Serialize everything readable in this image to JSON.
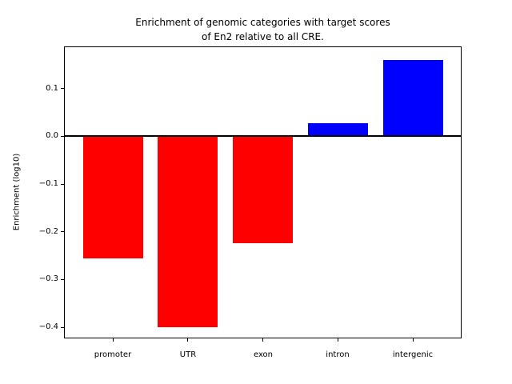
{
  "chart_data": {
    "type": "bar",
    "title": "Enrichment of genomic categories with target scores\nof En2 relative to all CRE.",
    "xlabel": "",
    "ylabel": "Enrichment (log10)",
    "categories": [
      "promoter",
      "UTR",
      "exon",
      "intron",
      "intergenic"
    ],
    "values": [
      -0.256,
      -0.4,
      -0.224,
      0.028,
      0.16
    ],
    "bar_colors": [
      "#ff0000",
      "#ff0000",
      "#ff0000",
      "#0000ff",
      "#0000ff"
    ],
    "negative_color": "#ff0000",
    "positive_color": "#0000ff",
    "yticks": [
      {
        "value": 0.1,
        "label": "0.1"
      },
      {
        "value": 0.0,
        "label": "0.0"
      },
      {
        "value": -0.1,
        "label": "−0.1"
      },
      {
        "value": -0.2,
        "label": "−0.2"
      },
      {
        "value": -0.3,
        "label": "−0.3"
      },
      {
        "value": -0.4,
        "label": "−0.4"
      }
    ],
    "ylim": [
      -0.4217,
      0.1867
    ],
    "xlim": [
      -0.64,
      4.64
    ],
    "bar_width": 0.8,
    "zero_line": {
      "value": 0.0,
      "color": "#000000"
    },
    "axes_color": "#000000",
    "background_color": "#ffffff",
    "grid": false,
    "legend": false
  }
}
